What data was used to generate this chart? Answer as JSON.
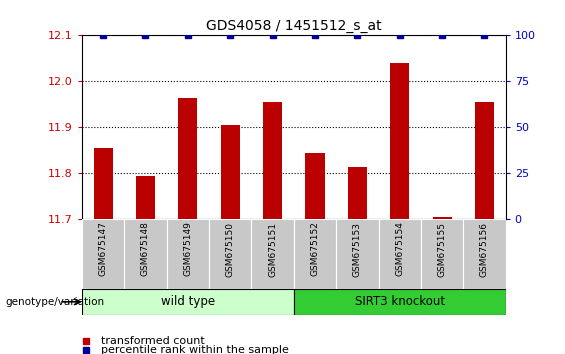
{
  "title": "GDS4058 / 1451512_s_at",
  "samples": [
    "GSM675147",
    "GSM675148",
    "GSM675149",
    "GSM675150",
    "GSM675151",
    "GSM675152",
    "GSM675153",
    "GSM675154",
    "GSM675155",
    "GSM675156"
  ],
  "transformed_counts": [
    11.855,
    11.795,
    11.965,
    11.905,
    11.955,
    11.845,
    11.815,
    12.04,
    11.705,
    11.955
  ],
  "percentile_ranks": [
    100,
    100,
    100,
    100,
    100,
    100,
    100,
    100,
    100,
    100
  ],
  "ylim_left": [
    11.7,
    12.1
  ],
  "ylim_right": [
    0,
    100
  ],
  "yticks_left": [
    11.7,
    11.8,
    11.9,
    12.0,
    12.1
  ],
  "yticks_right": [
    0,
    25,
    50,
    75,
    100
  ],
  "wt_color": "#CCFFCC",
  "ko_color": "#33CC33",
  "bar_color": "#BB0000",
  "dot_color": "#000099",
  "sample_bg_color": "#C8C8C8",
  "bar_width": 0.45,
  "tick_color_left": "#CC0000",
  "tick_color_right": "#0000CC",
  "genotype_label": "genotype/variation",
  "wt_label": "wild type",
  "ko_label": "SIRT3 knockout",
  "legend_bar": "transformed count",
  "legend_dot": "percentile rank within the sample"
}
